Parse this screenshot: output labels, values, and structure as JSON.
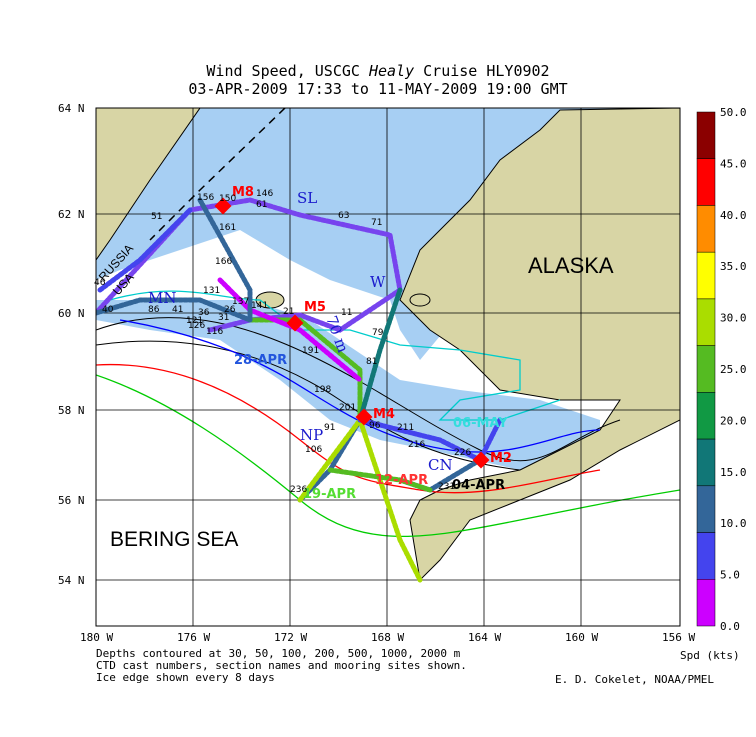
{
  "title": {
    "line1_prefix": "Wind Speed, USCGC ",
    "line1_ship": "Healy",
    "line1_suffix": " Cruise HLY0902",
    "line2": "03-APR-2009 17:33 to 11-MAY-2009 19:00 GMT"
  },
  "axes": {
    "lat_labels": [
      "64 N",
      "62 N",
      "60 N",
      "58 N",
      "56 N",
      "54 N"
    ],
    "lon_labels": [
      "180 W",
      "176 W",
      "172 W",
      "168 W",
      "164 W",
      "160 W",
      "156 W"
    ]
  },
  "region_labels": {
    "alaska": "ALASKA",
    "bering_sea": "BERING SEA",
    "russia": "RUSSIA",
    "usa": "USA"
  },
  "section_names": [
    "SL",
    "MN",
    "W",
    "70 m",
    "NP",
    "CN"
  ],
  "moorings": [
    "M8",
    "M5",
    "M4",
    "M2"
  ],
  "dates": [
    "28-APR",
    "06-MAY",
    "12-APR",
    "04-APR",
    "19-APR"
  ],
  "cast_numbers": [
    "156",
    "150",
    "146",
    "51",
    "61",
    "63",
    "71",
    "161",
    "166",
    "46",
    "40",
    "41",
    "86",
    "131",
    "137",
    "141",
    "126",
    "21",
    "11",
    "79",
    "191",
    "81",
    "198",
    "201",
    "91",
    "96",
    "106",
    "211",
    "216",
    "226",
    "231",
    "236",
    "116",
    "121",
    "31",
    "36",
    "26"
  ],
  "colorbar": {
    "ticks": [
      "50.0",
      "45.0",
      "40.0",
      "35.0",
      "30.0",
      "25.0",
      "20.0",
      "15.0",
      "10.0",
      "5.0",
      "0.0"
    ],
    "colors": [
      "#8b0000",
      "#ff0000",
      "#ff8c00",
      "#ffff00",
      "#aadd00",
      "#55bb22",
      "#119944",
      "#117777",
      "#336699",
      "#4444ee",
      "#cc00ff"
    ],
    "unit_label": "Spd (kts)"
  },
  "footer": {
    "line1": "Depths contoured at 30, 50, 100, 200, 500, 1000, 2000 m",
    "line2": "CTD cast numbers, section names and mooring sites shown.",
    "line3": "Ice edge shown every 8 days",
    "credit": "E. D. Cokelet, NOAA/PMEL"
  },
  "colors": {
    "land": "#d8d5a5",
    "ice": "#a7cff3"
  }
}
